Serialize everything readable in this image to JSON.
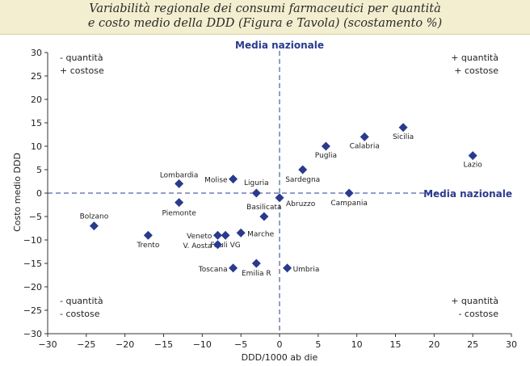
{
  "title_lines": [
    "Variabilità regionale dei consumi farmaceutici per quantità",
    "e costo medio della DDD (Figura e Tavola) (scostamento %)"
  ],
  "chart_data": {
    "type": "scatter",
    "xlabel": "DDD/1000 ab die",
    "ylabel": "Costo medio DDD",
    "xlim": [
      -30,
      30
    ],
    "ylim": [
      -30,
      30
    ],
    "xticks": [
      -30,
      -25,
      -20,
      -15,
      -10,
      -5,
      0,
      5,
      10,
      15,
      20,
      25,
      30
    ],
    "yticks": [
      -30,
      -25,
      -20,
      -15,
      -10,
      -5,
      0,
      5,
      10,
      15,
      20,
      25,
      30
    ],
    "grid": false,
    "reference_lines": {
      "vertical_label": "Media nazionale",
      "horizontal_label": "Media nazionale"
    },
    "quadrants": {
      "top_left": [
        "- quantità",
        "+ costose"
      ],
      "top_right": [
        "+ quantità",
        "+ costose"
      ],
      "bottom_left": [
        "- quantità",
        "- costose"
      ],
      "bottom_right": [
        "+ quantità",
        "- costose"
      ]
    },
    "points": [
      {
        "label": "Sicilia",
        "x": 16,
        "y": 14
      },
      {
        "label": "Calabria",
        "x": 11,
        "y": 12
      },
      {
        "label": "Puglia",
        "x": 6,
        "y": 10
      },
      {
        "label": "Lazio",
        "x": 25,
        "y": 8
      },
      {
        "label": "Sardegna",
        "x": 3,
        "y": 5
      },
      {
        "label": "Molise",
        "x": -6,
        "y": 3
      },
      {
        "label": "Lombardia",
        "x": -13,
        "y": 2
      },
      {
        "label": "Liguria",
        "x": -3,
        "y": 0
      },
      {
        "label": "Campania",
        "x": 9,
        "y": 0
      },
      {
        "label": "Abruzzo",
        "x": 0,
        "y": -1
      },
      {
        "label": "Piemonte",
        "x": -13,
        "y": -2
      },
      {
        "label": "Basilicata",
        "x": -2,
        "y": -5
      },
      {
        "label": "Bolzano",
        "x": -24,
        "y": -7
      },
      {
        "label": "Marche",
        "x": -5,
        "y": -8.5
      },
      {
        "label": "Trento",
        "x": -17,
        "y": -9
      },
      {
        "label": "Veneto",
        "x": -8,
        "y": -9
      },
      {
        "label": "Friuli VG",
        "x": -7,
        "y": -9
      },
      {
        "label": "V. Aosta",
        "x": -8,
        "y": -11
      },
      {
        "label": "Emilia R",
        "x": -3,
        "y": -15
      },
      {
        "label": "Toscana",
        "x": -6,
        "y": -16
      },
      {
        "label": "Umbria",
        "x": 1,
        "y": -16
      }
    ],
    "marker_color": "#2a3a8c",
    "reference_color": "#2a3a8c",
    "label_color": "#222222",
    "axis_color": "#333333"
  }
}
